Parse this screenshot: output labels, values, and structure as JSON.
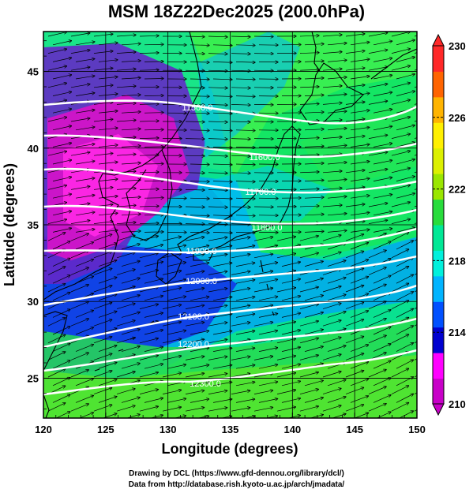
{
  "title": "MSM 18Z22Dec2025 (200.0hPa)",
  "footer": {
    "line1": "Drawing by DCL (https://www.gfd-dennou.org/library/dcl/)",
    "line2": "Data from http://database.rish.kyoto-u.ac.jp/arch/jmadata/"
  },
  "map": {
    "xlabel": "Longitude (degrees)",
    "ylabel": "Latitude  (degrees)",
    "xlim": [
      120,
      150
    ],
    "ylim": [
      22.4,
      47.6
    ],
    "xticks": [
      120,
      125,
      130,
      135,
      140,
      145,
      150
    ],
    "yticks": [
      25,
      30,
      35,
      40,
      45
    ],
    "grid": true
  },
  "colorbar": {
    "min": 210,
    "max": 230,
    "ticks": [
      210,
      214,
      218,
      222,
      226,
      230
    ],
    "colors": [
      "#c800c8",
      "#ff00ff",
      "#0000d0",
      "#0050ff",
      "#00b4ff",
      "#00f0dc",
      "#00e896",
      "#28dc3c",
      "#9ae600",
      "#dcf000",
      "#fff000",
      "#ffb400",
      "#ff6400",
      "#ff2828"
    ]
  },
  "contours": [
    {
      "label": "11500.0"
    },
    {
      "label": "11600.0"
    },
    {
      "label": "11700.0"
    },
    {
      "label": "11800.0"
    },
    {
      "label": "11900.0"
    },
    {
      "label": "12000.0"
    },
    {
      "label": "12100.0"
    },
    {
      "label": "12200.0"
    },
    {
      "label": "12300.0"
    }
  ]
}
